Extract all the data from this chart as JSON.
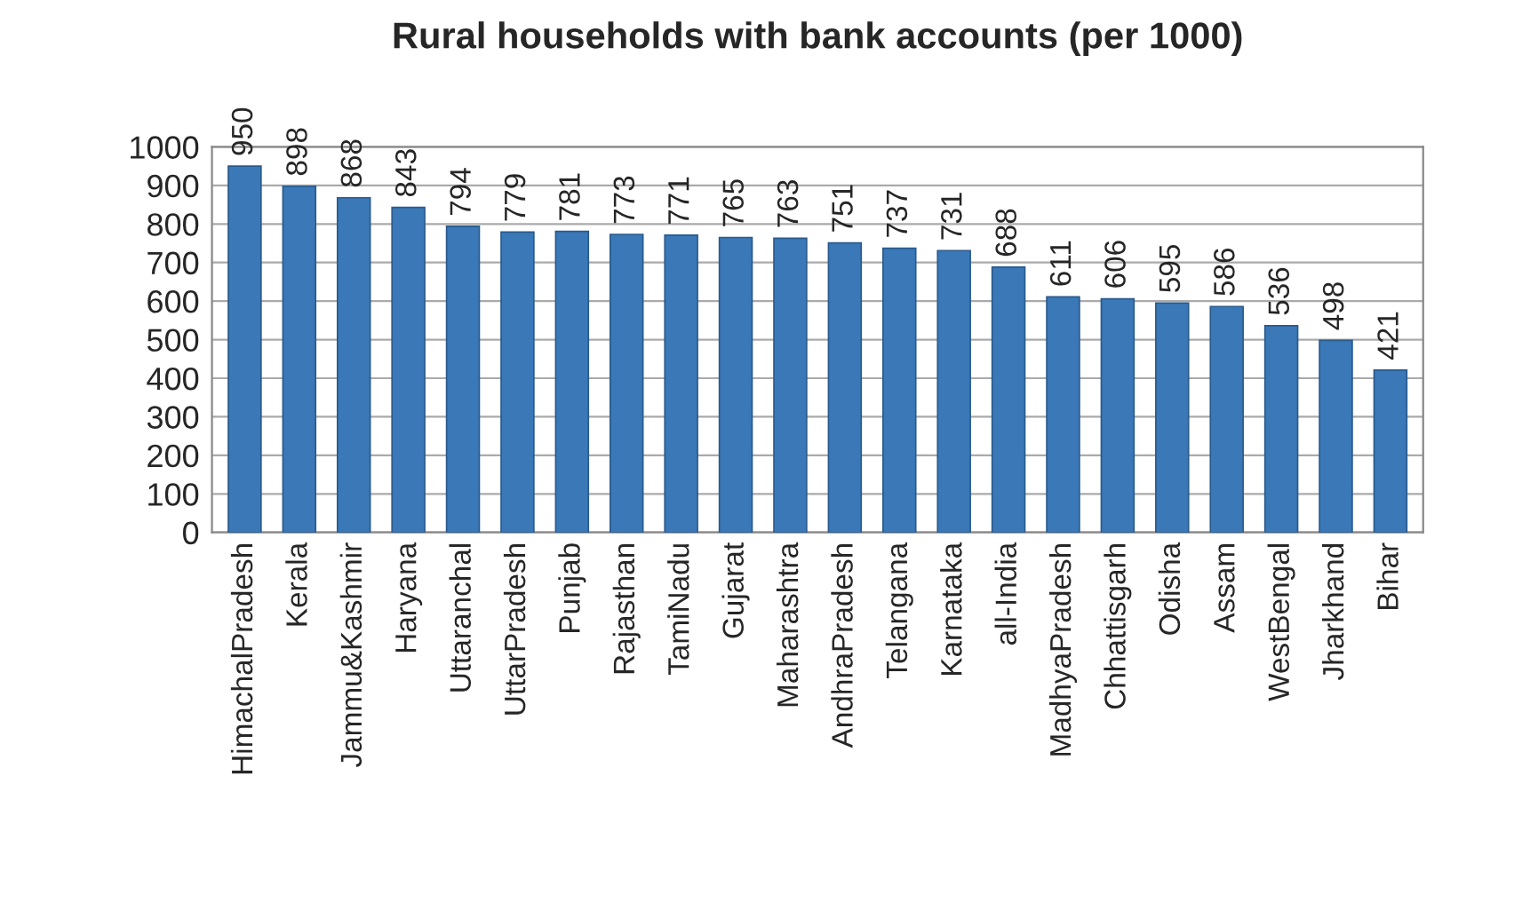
{
  "chart_data": {
    "type": "bar",
    "title": "Rural households with bank accounts (per 1000)",
    "categories": [
      "HimachalPradesh",
      "Kerala",
      "Jammu&Kashmir",
      "Haryana",
      "Uttaranchal",
      "UttarPradesh",
      "Punjab",
      "Rajasthan",
      "TamiNadu",
      "Gujarat",
      "Maharashtra",
      "AndhraPradesh",
      "Telangana",
      "Karnataka",
      "all-India",
      "MadhyaPradesh",
      "Chhattisgarh",
      "Odisha",
      "Assam",
      "WestBengal",
      "Jharkhand",
      "Bihar"
    ],
    "values": [
      950,
      898,
      868,
      843,
      794,
      779,
      781,
      773,
      771,
      765,
      763,
      751,
      737,
      731,
      688,
      611,
      606,
      595,
      586,
      536,
      498,
      421
    ],
    "color": "#3a78b8",
    "ylim": [
      0,
      1000
    ],
    "yticks": [
      0,
      100,
      200,
      300,
      400,
      500,
      600,
      700,
      800,
      900,
      1000
    ],
    "grid": "y",
    "data_labels": true
  }
}
